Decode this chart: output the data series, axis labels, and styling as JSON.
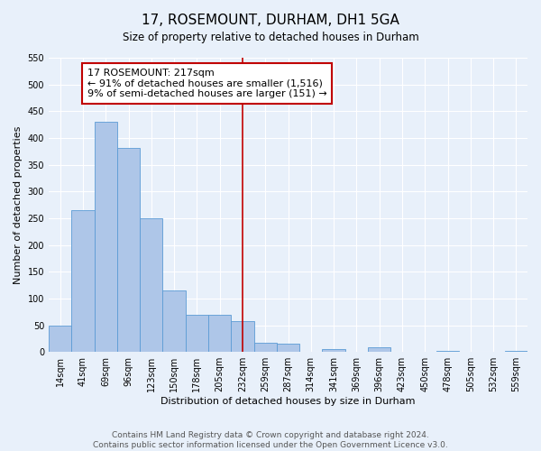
{
  "title": "17, ROSEMOUNT, DURHAM, DH1 5GA",
  "subtitle": "Size of property relative to detached houses in Durham",
  "xlabel": "Distribution of detached houses by size in Durham",
  "ylabel": "Number of detached properties",
  "bar_labels": [
    "14sqm",
    "41sqm",
    "69sqm",
    "96sqm",
    "123sqm",
    "150sqm",
    "178sqm",
    "205sqm",
    "232sqm",
    "259sqm",
    "287sqm",
    "314sqm",
    "341sqm",
    "369sqm",
    "396sqm",
    "423sqm",
    "450sqm",
    "478sqm",
    "505sqm",
    "532sqm",
    "559sqm"
  ],
  "bar_heights": [
    50,
    265,
    430,
    382,
    250,
    115,
    70,
    70,
    58,
    18,
    15,
    0,
    6,
    0,
    8,
    0,
    0,
    2,
    0,
    0,
    2
  ],
  "bar_color": "#aec6e8",
  "bar_edge_color": "#5b9bd5",
  "vline_x": 8.0,
  "vline_color": "#c00000",
  "annotation_text": "17 ROSEMOUNT: 217sqm\n← 91% of detached houses are smaller (1,516)\n9% of semi-detached houses are larger (151) →",
  "annotation_box_color": "#ffffff",
  "annotation_box_edge_color": "#c00000",
  "ylim": [
    0,
    550
  ],
  "yticks": [
    0,
    50,
    100,
    150,
    200,
    250,
    300,
    350,
    400,
    450,
    500,
    550
  ],
  "footer_line1": "Contains HM Land Registry data © Crown copyright and database right 2024.",
  "footer_line2": "Contains public sector information licensed under the Open Government Licence v3.0.",
  "bg_color": "#e8f0fa",
  "plot_bg_color": "#e8f0fa",
  "title_fontsize": 11,
  "axis_label_fontsize": 8,
  "tick_fontsize": 7,
  "footer_fontsize": 6.5,
  "annotation_fontsize": 8
}
